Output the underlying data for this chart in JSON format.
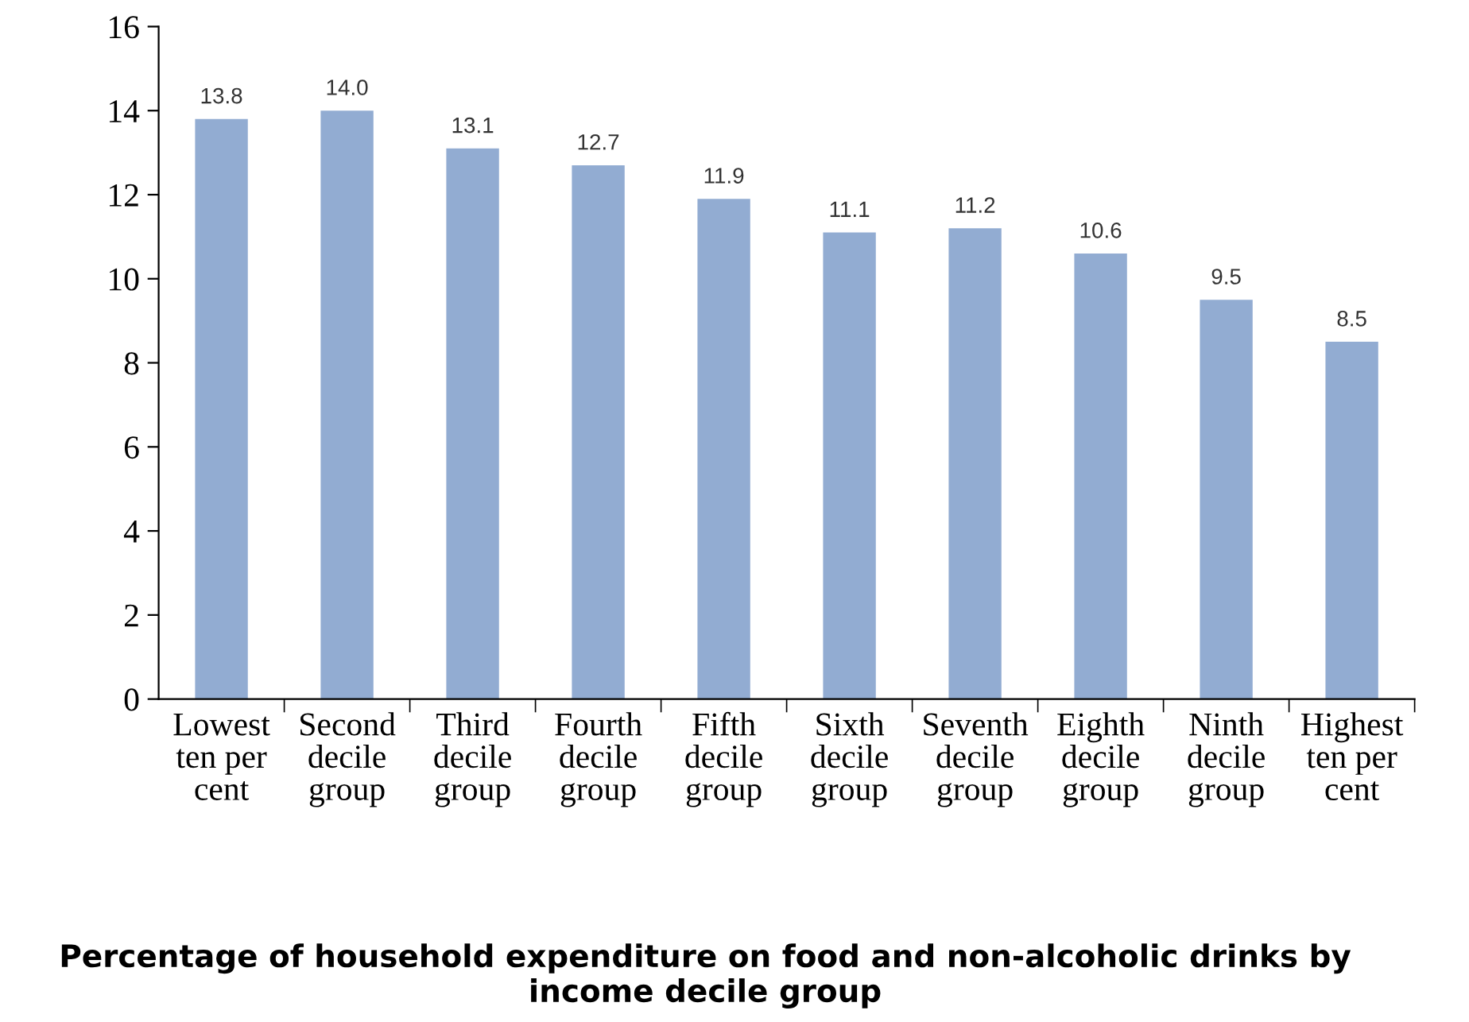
{
  "chart_data": {
    "type": "bar",
    "title": "Percentage of household expenditure on food and non-alcoholic drinks by income decile group",
    "categories": [
      "Lowest\nten per\ncent",
      "Second\ndecile\ngroup",
      "Third\ndecile\ngroup",
      "Fourth\ndecile\ngroup",
      "Fifth\ndecile\ngroup",
      "Sixth\ndecile\ngroup",
      "Seventh\ndecile\ngroup",
      "Eighth\ndecile\ngroup",
      "Ninth\ndecile\ngroup",
      "Highest\nten per\ncent"
    ],
    "values": [
      13.8,
      14.0,
      13.1,
      12.7,
      11.9,
      11.1,
      11.2,
      10.6,
      9.5,
      8.5
    ],
    "value_labels": [
      "13.8",
      "14.0",
      "13.1",
      "12.7",
      "11.9",
      "11.1",
      "11.2",
      "10.6",
      "9.5",
      "8.5"
    ],
    "color": "#92acd2",
    "ylim": [
      0,
      16
    ],
    "yticks": [
      0,
      2,
      4,
      6,
      8,
      10,
      12,
      14,
      16
    ],
    "grid": false,
    "legend": false
  }
}
